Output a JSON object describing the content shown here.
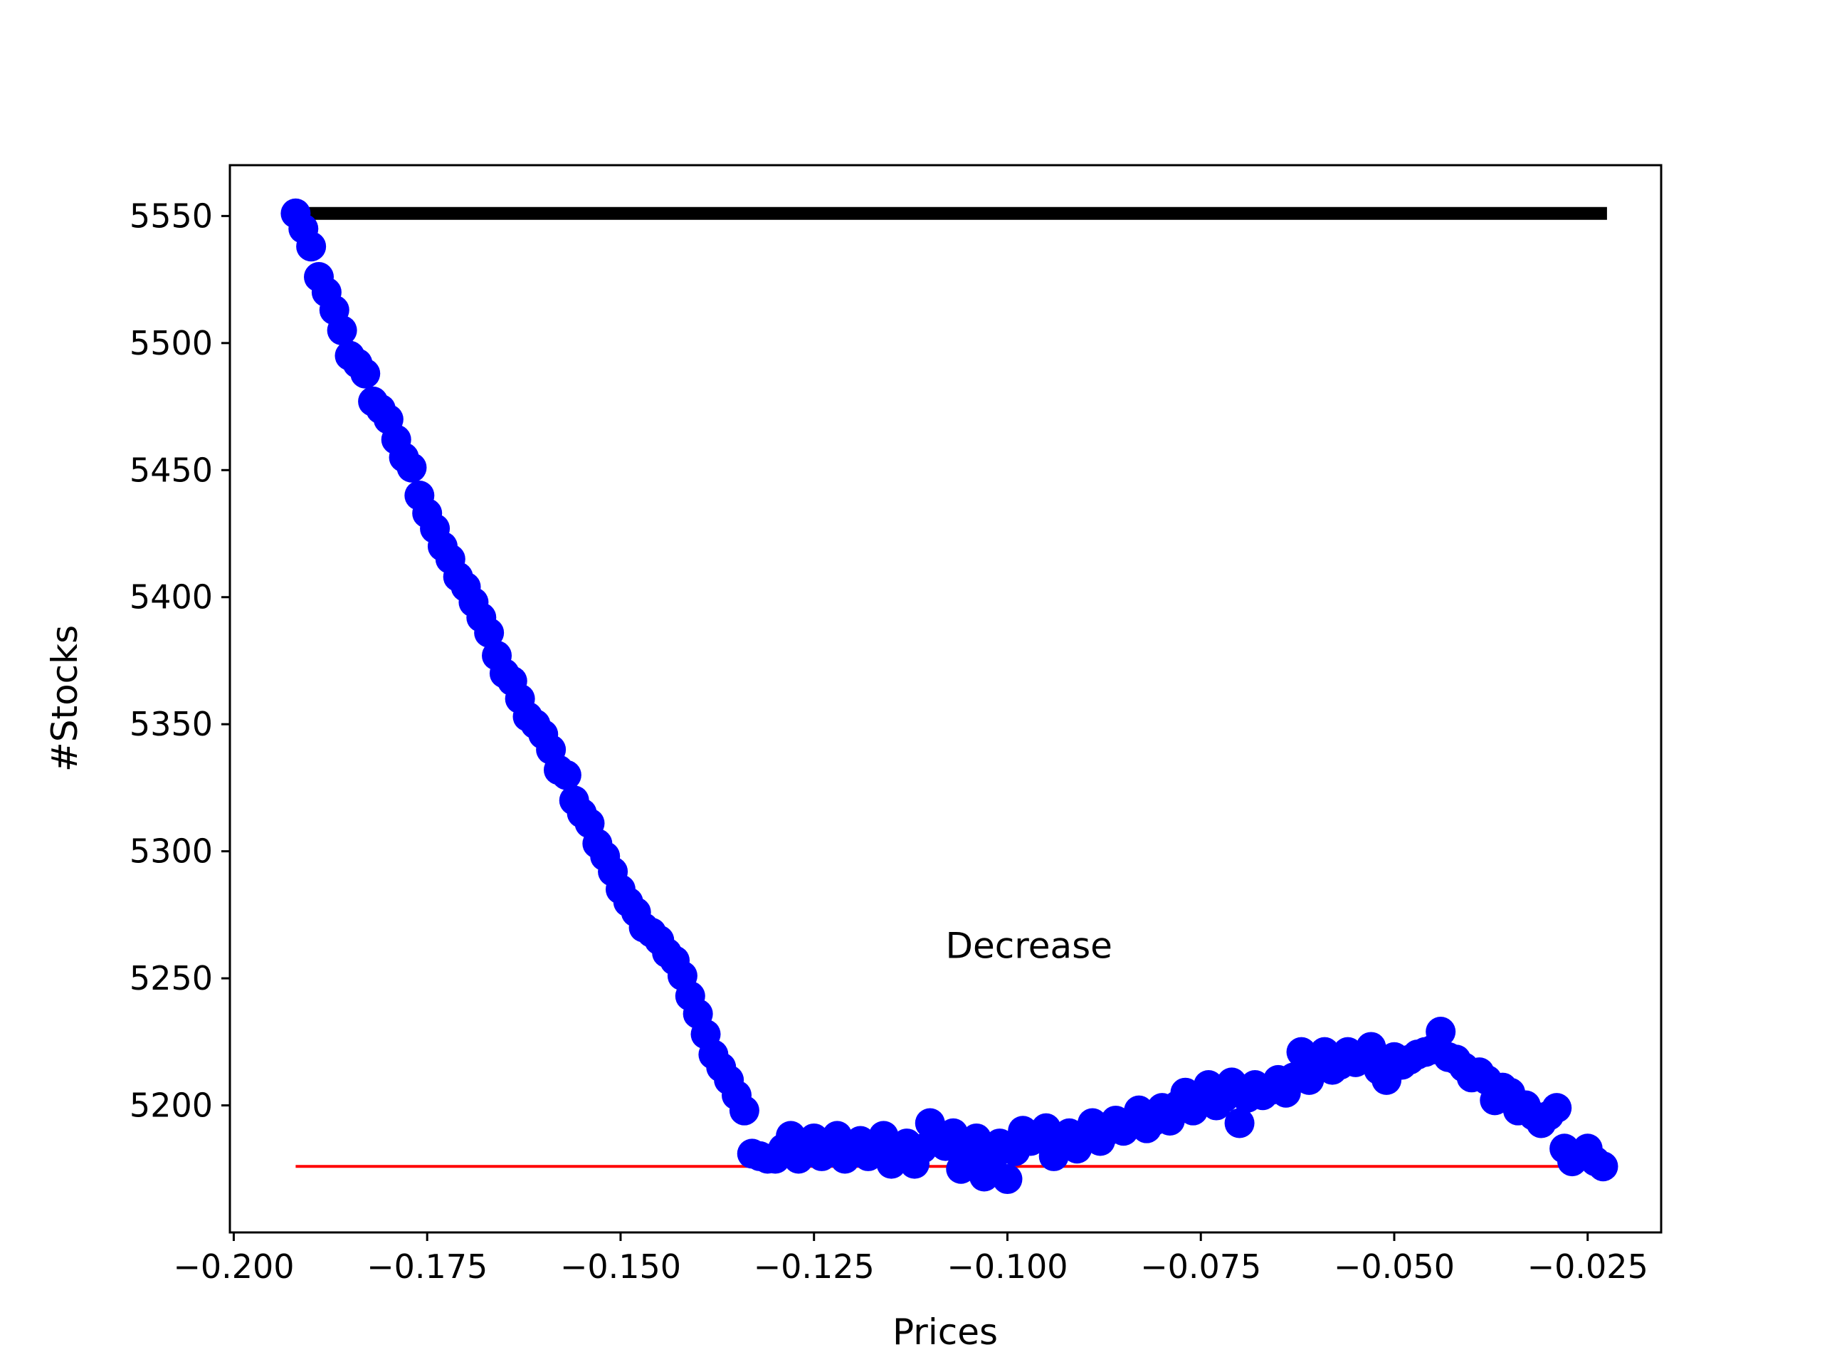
{
  "chart_data": {
    "type": "scatter",
    "title": "",
    "xlabel": "Prices",
    "ylabel": "#Stocks",
    "xlim": [
      -0.2005,
      -0.0155
    ],
    "ylim": [
      5150,
      5570
    ],
    "xticks": [
      -0.2,
      -0.175,
      -0.15,
      -0.125,
      -0.1,
      -0.075,
      -0.05,
      -0.025
    ],
    "xtick_labels": [
      "−0.200",
      "−0.175",
      "−0.150",
      "−0.125",
      "−0.100",
      "−0.075",
      "−0.050",
      "−0.025"
    ],
    "yticks": [
      5200,
      5250,
      5300,
      5350,
      5400,
      5450,
      5500,
      5550
    ],
    "ytick_labels": [
      "5200",
      "5250",
      "5300",
      "5350",
      "5400",
      "5450",
      "5500",
      "5550"
    ],
    "grid": false,
    "annotation": {
      "text": "Decrease",
      "x": -0.108,
      "y": 5258
    },
    "series": [
      {
        "kind": "line",
        "color": "#000000",
        "points": [
          [
            -0.192,
            5551
          ],
          [
            -0.0225,
            5551
          ]
        ]
      },
      {
        "kind": "line",
        "color": "#ff0000",
        "points": [
          [
            -0.192,
            5176
          ],
          [
            -0.0225,
            5176
          ]
        ]
      },
      {
        "kind": "scatter",
        "color": "#0000ff",
        "points": [
          [
            -0.192,
            5551
          ],
          [
            -0.191,
            5545
          ],
          [
            -0.19,
            5538
          ],
          [
            -0.189,
            5526
          ],
          [
            -0.188,
            5520
          ],
          [
            -0.187,
            5513
          ],
          [
            -0.186,
            5505
          ],
          [
            -0.185,
            5495
          ],
          [
            -0.184,
            5492
          ],
          [
            -0.183,
            5488
          ],
          [
            -0.182,
            5477
          ],
          [
            -0.181,
            5474
          ],
          [
            -0.18,
            5470
          ],
          [
            -0.179,
            5462
          ],
          [
            -0.178,
            5455
          ],
          [
            -0.177,
            5451
          ],
          [
            -0.176,
            5440
          ],
          [
            -0.175,
            5433
          ],
          [
            -0.174,
            5427
          ],
          [
            -0.173,
            5420
          ],
          [
            -0.172,
            5415
          ],
          [
            -0.171,
            5408
          ],
          [
            -0.17,
            5404
          ],
          [
            -0.169,
            5398
          ],
          [
            -0.168,
            5392
          ],
          [
            -0.167,
            5386
          ],
          [
            -0.166,
            5377
          ],
          [
            -0.165,
            5370
          ],
          [
            -0.164,
            5367
          ],
          [
            -0.163,
            5360
          ],
          [
            -0.162,
            5353
          ],
          [
            -0.161,
            5350
          ],
          [
            -0.16,
            5346
          ],
          [
            -0.159,
            5340
          ],
          [
            -0.158,
            5332
          ],
          [
            -0.157,
            5330
          ],
          [
            -0.156,
            5320
          ],
          [
            -0.155,
            5315
          ],
          [
            -0.154,
            5311
          ],
          [
            -0.153,
            5303
          ],
          [
            -0.152,
            5298
          ],
          [
            -0.151,
            5292
          ],
          [
            -0.15,
            5285
          ],
          [
            -0.149,
            5280
          ],
          [
            -0.148,
            5276
          ],
          [
            -0.147,
            5270
          ],
          [
            -0.146,
            5268
          ],
          [
            -0.145,
            5265
          ],
          [
            -0.144,
            5260
          ],
          [
            -0.143,
            5257
          ],
          [
            -0.142,
            5251
          ],
          [
            -0.141,
            5243
          ],
          [
            -0.14,
            5236
          ],
          [
            -0.139,
            5228
          ],
          [
            -0.138,
            5220
          ],
          [
            -0.137,
            5215
          ],
          [
            -0.136,
            5210
          ],
          [
            -0.135,
            5204
          ],
          [
            -0.134,
            5198
          ],
          [
            -0.133,
            5181
          ],
          [
            -0.132,
            5180
          ],
          [
            -0.131,
            5179
          ],
          [
            -0.13,
            5179
          ],
          [
            -0.129,
            5183
          ],
          [
            -0.128,
            5188
          ],
          [
            -0.127,
            5179
          ],
          [
            -0.126,
            5182
          ],
          [
            -0.125,
            5187
          ],
          [
            -0.124,
            5180
          ],
          [
            -0.123,
            5182
          ],
          [
            -0.122,
            5188
          ],
          [
            -0.121,
            5179
          ],
          [
            -0.12,
            5183
          ],
          [
            -0.119,
            5186
          ],
          [
            -0.118,
            5180
          ],
          [
            -0.117,
            5184
          ],
          [
            -0.116,
            5188
          ],
          [
            -0.115,
            5177
          ],
          [
            -0.114,
            5182
          ],
          [
            -0.113,
            5185
          ],
          [
            -0.112,
            5177
          ],
          [
            -0.111,
            5183
          ],
          [
            -0.11,
            5193
          ],
          [
            -0.109,
            5186
          ],
          [
            -0.108,
            5184
          ],
          [
            -0.107,
            5189
          ],
          [
            -0.106,
            5175
          ],
          [
            -0.105,
            5180
          ],
          [
            -0.104,
            5187
          ],
          [
            -0.103,
            5172
          ],
          [
            -0.102,
            5178
          ],
          [
            -0.101,
            5185
          ],
          [
            -0.1,
            5171
          ],
          [
            -0.099,
            5182
          ],
          [
            -0.098,
            5190
          ],
          [
            -0.097,
            5186
          ],
          [
            -0.096,
            5188
          ],
          [
            -0.095,
            5191
          ],
          [
            -0.094,
            5180
          ],
          [
            -0.093,
            5184
          ],
          [
            -0.092,
            5189
          ],
          [
            -0.091,
            5183
          ],
          [
            -0.09,
            5187
          ],
          [
            -0.089,
            5193
          ],
          [
            -0.088,
            5186
          ],
          [
            -0.087,
            5190
          ],
          [
            -0.086,
            5194
          ],
          [
            -0.085,
            5190
          ],
          [
            -0.084,
            5193
          ],
          [
            -0.083,
            5198
          ],
          [
            -0.082,
            5191
          ],
          [
            -0.081,
            5194
          ],
          [
            -0.08,
            5199
          ],
          [
            -0.079,
            5194
          ],
          [
            -0.078,
            5200
          ],
          [
            -0.077,
            5205
          ],
          [
            -0.076,
            5198
          ],
          [
            -0.075,
            5201
          ],
          [
            -0.074,
            5208
          ],
          [
            -0.073,
            5200
          ],
          [
            -0.072,
            5203
          ],
          [
            -0.071,
            5209
          ],
          [
            -0.07,
            5193
          ],
          [
            -0.069,
            5203
          ],
          [
            -0.068,
            5208
          ],
          [
            -0.067,
            5204
          ],
          [
            -0.066,
            5206
          ],
          [
            -0.065,
            5210
          ],
          [
            -0.064,
            5205
          ],
          [
            -0.063,
            5211
          ],
          [
            -0.062,
            5221
          ],
          [
            -0.061,
            5210
          ],
          [
            -0.06,
            5215
          ],
          [
            -0.059,
            5221
          ],
          [
            -0.058,
            5214
          ],
          [
            -0.057,
            5216
          ],
          [
            -0.056,
            5221
          ],
          [
            -0.055,
            5217
          ],
          [
            -0.054,
            5219
          ],
          [
            -0.053,
            5223
          ],
          [
            -0.052,
            5214
          ],
          [
            -0.051,
            5210
          ],
          [
            -0.05,
            5219
          ],
          [
            -0.049,
            5216
          ],
          [
            -0.048,
            5218
          ],
          [
            -0.047,
            5220
          ],
          [
            -0.046,
            5221
          ],
          [
            -0.045,
            5222
          ],
          [
            -0.044,
            5229
          ],
          [
            -0.043,
            5219
          ],
          [
            -0.042,
            5218
          ],
          [
            -0.041,
            5215
          ],
          [
            -0.04,
            5211
          ],
          [
            -0.039,
            5213
          ],
          [
            -0.038,
            5210
          ],
          [
            -0.037,
            5202
          ],
          [
            -0.036,
            5207
          ],
          [
            -0.035,
            5205
          ],
          [
            -0.034,
            5198
          ],
          [
            -0.033,
            5200
          ],
          [
            -0.032,
            5196
          ],
          [
            -0.031,
            5193
          ],
          [
            -0.03,
            5196
          ],
          [
            -0.029,
            5199
          ],
          [
            -0.028,
            5183
          ],
          [
            -0.027,
            5178
          ],
          [
            -0.026,
            5180
          ],
          [
            -0.025,
            5183
          ],
          [
            -0.024,
            5178
          ],
          [
            -0.023,
            5176
          ]
        ]
      }
    ]
  }
}
